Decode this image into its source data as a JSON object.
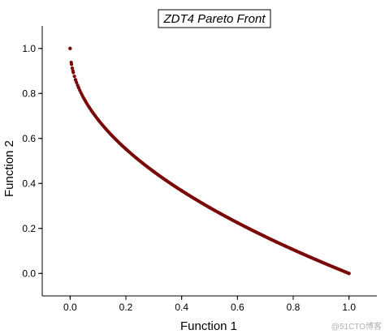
{
  "chart_data": {
    "type": "scatter",
    "title": "ZDT4 Pareto Front",
    "xlabel": "Function 1",
    "ylabel": "Function 2",
    "xlim": [
      -0.1,
      1.1
    ],
    "ylim": [
      -0.1,
      1.1
    ],
    "xticks": [
      "0.0",
      "0.2",
      "0.4",
      "0.6",
      "0.8",
      "1.0"
    ],
    "yticks": [
      "0.0",
      "0.2",
      "0.4",
      "0.6",
      "0.8",
      "1.0"
    ],
    "series": [
      {
        "color": "#7a0a0a",
        "curve": "y = 1 - sqrt(x)",
        "x_range": [
          0,
          1
        ],
        "x": [
          0.0,
          0.005,
          0.01,
          0.02,
          0.03,
          0.05,
          0.1,
          0.2,
          0.3,
          0.4,
          0.5,
          0.6,
          0.7,
          0.8,
          0.9,
          1.0
        ],
        "y": [
          1.0,
          0.929,
          0.9,
          0.859,
          0.827,
          0.776,
          0.684,
          0.553,
          0.452,
          0.368,
          0.293,
          0.225,
          0.163,
          0.106,
          0.051,
          0.0
        ]
      }
    ],
    "grid": false,
    "legend": "none"
  },
  "watermark": "@51CTO博客",
  "colors": {
    "marker": "#7a0a0a",
    "axis": "#000000"
  }
}
